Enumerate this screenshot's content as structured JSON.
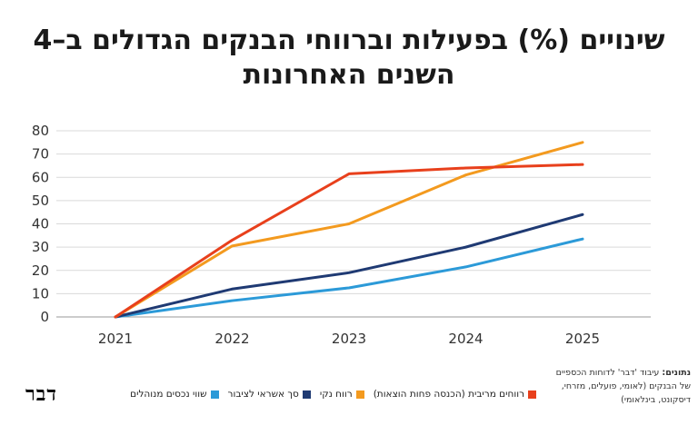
{
  "title": "שינויים (%) בפעילות וברווחי הבנקים הגדולים ב–4 השנים האחרונות",
  "chart_data": {
    "type": "line",
    "title": "שינויים (%) בפעילות וברווחי הבנקים הגדולים ב–4 השנים האחרונות",
    "xlabel": "",
    "ylabel": "",
    "categories": [
      "2021",
      "2022",
      "2023",
      "2024",
      "2025"
    ],
    "ylim": [
      0,
      80
    ],
    "yticks": [
      0,
      10,
      20,
      30,
      40,
      50,
      60,
      70,
      80
    ],
    "grid": true,
    "legend_position": "bottom",
    "series": [
      {
        "name": "רווחים מריבית (הכנסה פחות הוצאות)",
        "color": "#e8401c",
        "values": [
          0,
          33,
          61.5,
          64,
          65.5
        ]
      },
      {
        "name": "רווח נקי",
        "color": "#f39a1f",
        "values": [
          0,
          30.5,
          40,
          61,
          75
        ]
      },
      {
        "name": "סך אשראי לציבור",
        "color": "#1f3a73",
        "values": [
          0,
          12,
          19,
          30,
          44
        ]
      },
      {
        "name": "שווי נכסים מנוהלים",
        "color": "#2c9ad8",
        "values": [
          0,
          7,
          12.5,
          21.5,
          33.5
        ]
      }
    ]
  },
  "legend": [
    {
      "label": "רווחים מריבית (הכנסה פחות הוצאות)",
      "color": "#e8401c"
    },
    {
      "label": "רווח נקי",
      "color": "#f39a1f"
    },
    {
      "label": "סך אשראי לציבור",
      "color": "#1f3a73"
    },
    {
      "label": "שווי נכסים מנוהלים",
      "color": "#2c9ad8"
    }
  ],
  "source": {
    "label": "נתונים:",
    "line1": "עיבוד 'דבר' לדוחות הכספיים",
    "line2": "של הבנקים (לאומי, פועלים, מזרחי,",
    "line3": "דיסקונט, בינלאומי)"
  },
  "logo": "דבר"
}
